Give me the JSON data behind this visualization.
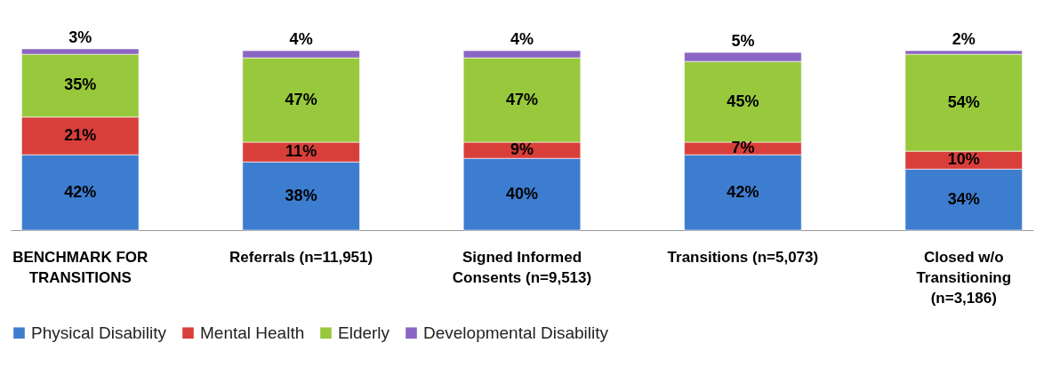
{
  "chart_data": {
    "type": "bar",
    "stacked": true,
    "legend": "bottom",
    "categories": [
      "BENCHMARK FOR TRANSITIONS",
      "Referrals (n=11,951)",
      "Signed Informed Consents (n=9,513)",
      "Transitions (n=5,073)",
      "Closed w/o Transitioning (n=3,186)"
    ],
    "series": [
      {
        "name": "Physical Disability",
        "color": "#3d7dd0",
        "values": [
          42,
          38,
          40,
          42,
          34
        ],
        "value_labels": [
          "42%",
          "38%",
          "40%",
          "42%",
          "34%"
        ]
      },
      {
        "name": "Mental Health",
        "color": "#d83f3b",
        "values": [
          21,
          11,
          9,
          7,
          10
        ],
        "value_labels": [
          "21%",
          "11%",
          "9%",
          "7%",
          "10%"
        ]
      },
      {
        "name": "Elderly",
        "color": "#98c83c",
        "values": [
          35,
          47,
          47,
          45,
          54
        ],
        "value_labels": [
          "35%",
          "47%",
          "47%",
          "45%",
          "54%"
        ]
      },
      {
        "name": "Developmental Disability",
        "color": "#8b65c4",
        "values": [
          3,
          4,
          4,
          5,
          2
        ],
        "value_labels": [
          "3%",
          "4%",
          "4%",
          "5%",
          "2%"
        ]
      }
    ]
  }
}
